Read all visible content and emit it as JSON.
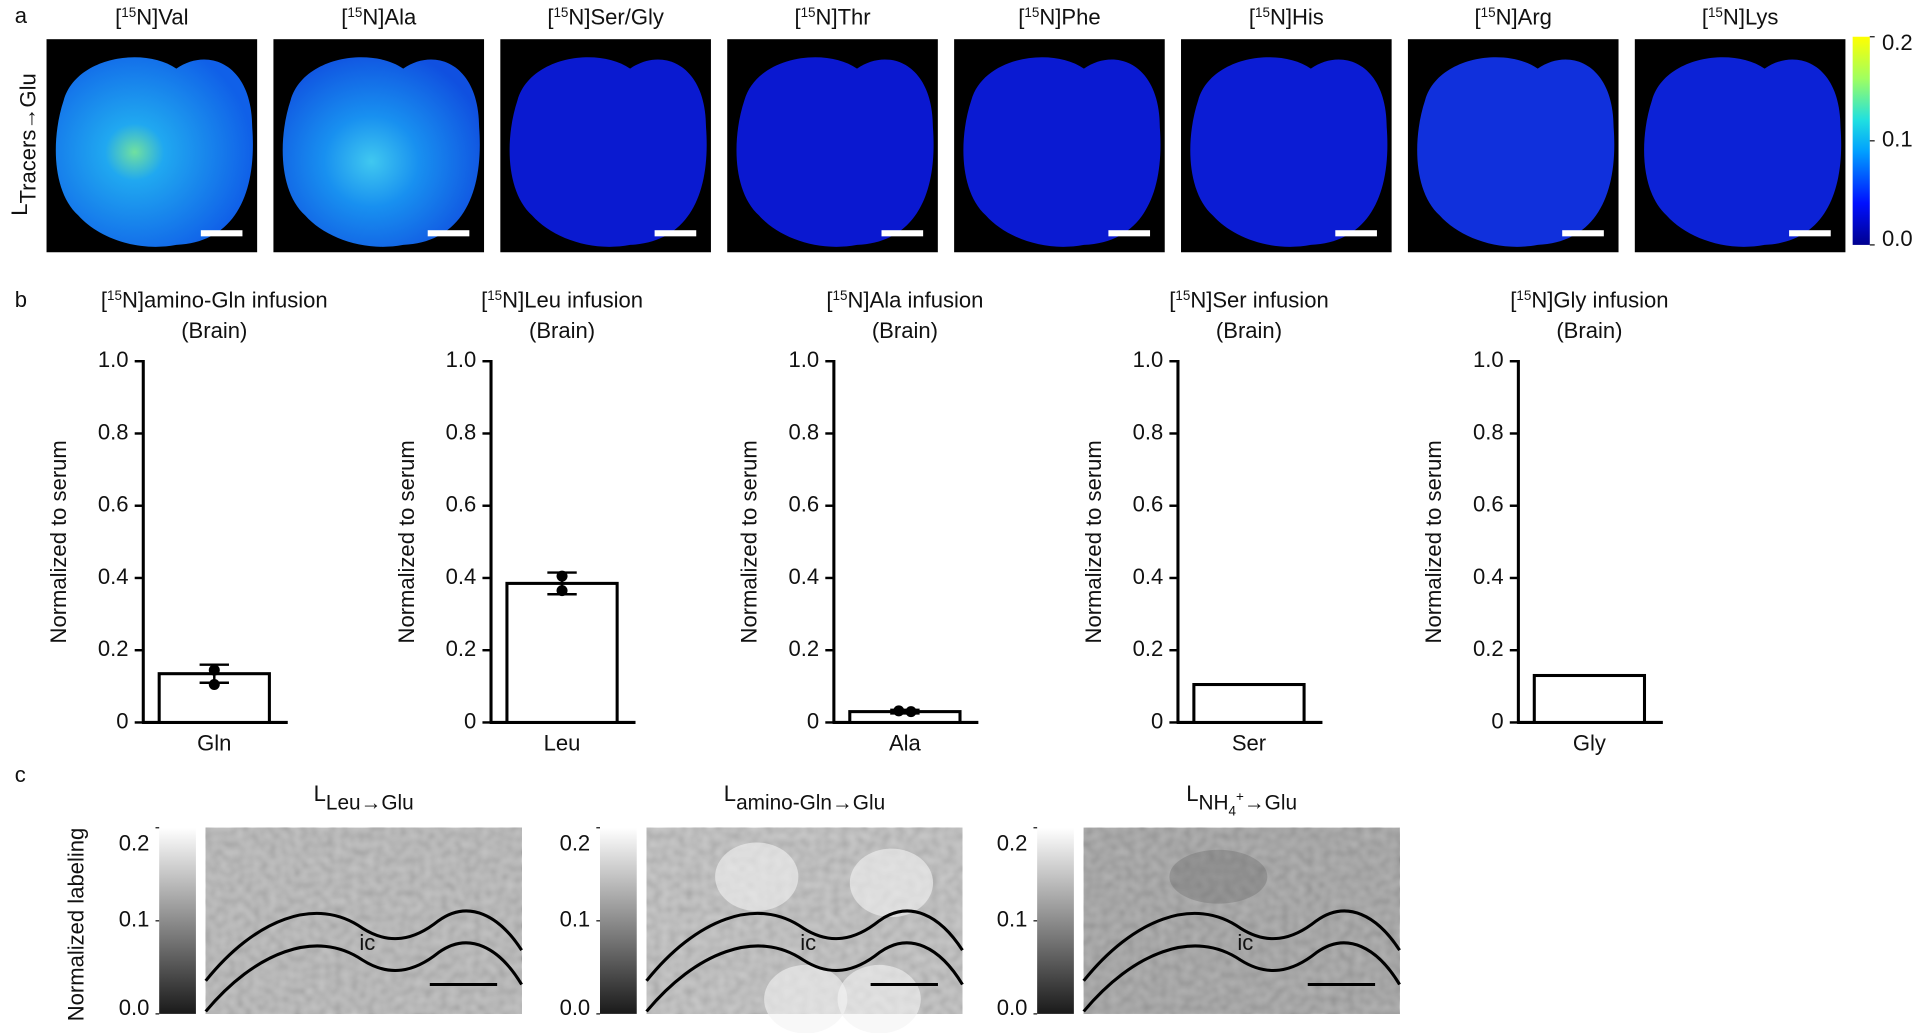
{
  "panel_labels": [
    "a",
    "b",
    "c"
  ],
  "panel_a": {
    "row_label": [
      "L",
      "Tracers→Glu"
    ],
    "images": [
      {
        "title": [
          "[",
          "15",
          "N]Val"
        ]
      },
      {
        "title": [
          "[",
          "15",
          "N]Ala"
        ]
      },
      {
        "title": [
          "[",
          "15",
          "N]Ser/Gly"
        ]
      },
      {
        "title": [
          "[",
          "15",
          "N]Thr"
        ]
      },
      {
        "title": [
          "[",
          "15",
          "N]Phe"
        ]
      },
      {
        "title": [
          "[",
          "15",
          "N]His"
        ]
      },
      {
        "title": [
          "[",
          "15",
          "N]Arg"
        ]
      },
      {
        "title": [
          "[",
          "15",
          "N]Lys"
        ]
      }
    ],
    "colorbar": {
      "lim": [
        0,
        0.2
      ],
      "ticks": [
        {
          "value": 0,
          "label": "0.0"
        },
        0.1,
        0.2
      ]
    }
  },
  "chart_data": [
    {
      "type": "bar",
      "title": [
        "[",
        "15",
        "N]amino-Gln infusion"
      ],
      "subtitle": "(Brain)",
      "ylabel": "Normalized to serum",
      "categories": [
        "Gln"
      ],
      "values": [
        0.135
      ],
      "errors": [
        0.025
      ],
      "points": [
        [
          0.145,
          0.105
        ]
      ],
      "color": "#ffffff",
      "ylim": [
        0,
        1
      ],
      "yticks": [
        0,
        0.2,
        0.4,
        0.6,
        0.8,
        {
          "value": 1,
          "label": "1.0"
        }
      ]
    },
    {
      "type": "bar",
      "title": [
        "[",
        "15",
        "N]Leu infusion"
      ],
      "subtitle": "(Brain)",
      "ylabel": "Normalized to serum",
      "categories": [
        "Leu"
      ],
      "values": [
        0.385
      ],
      "errors": [
        0.03
      ],
      "points": [
        [
          0.405,
          0.365
        ]
      ],
      "color": "#ffffff",
      "ylim": [
        0,
        1
      ],
      "yticks": [
        0,
        0.2,
        0.4,
        0.6,
        0.8,
        {
          "value": 1,
          "label": "1.0"
        }
      ]
    },
    {
      "type": "bar",
      "title": [
        "[",
        "15",
        "N]Ala infusion"
      ],
      "subtitle": "(Brain)",
      "ylabel": "Normalized to serum",
      "categories": [
        "Ala"
      ],
      "values": [
        0.03
      ],
      "errors": [
        0.005
      ],
      "points": [
        [
          0.032,
          0.03
        ]
      ],
      "color": "#ffffff",
      "ylim": [
        0,
        1
      ],
      "yticks": [
        0,
        0.2,
        0.4,
        0.6,
        0.8,
        {
          "value": 1,
          "label": "1.0"
        }
      ]
    },
    {
      "type": "bar",
      "title": [
        "[",
        "15",
        "N]Ser infusion"
      ],
      "subtitle": "(Brain)",
      "ylabel": "Normalized to serum",
      "categories": [
        "Ser"
      ],
      "values": [
        0.105
      ],
      "color": "#ffffff",
      "ylim": [
        0,
        1
      ],
      "yticks": [
        0,
        0.2,
        0.4,
        0.6,
        0.8,
        {
          "value": 1,
          "label": "1.0"
        }
      ]
    },
    {
      "type": "bar",
      "title": [
        "[",
        "15",
        "N]Gly infusion"
      ],
      "subtitle": "(Brain)",
      "ylabel": "Normalized to serum",
      "categories": [
        "Gly"
      ],
      "values": [
        0.13
      ],
      "color": "#ffffff",
      "ylim": [
        0,
        1
      ],
      "yticks": [
        0,
        0.2,
        0.4,
        0.6,
        0.8,
        {
          "value": 1,
          "label": "1.0"
        }
      ]
    }
  ],
  "panel_c": {
    "ylabel": "Normalized labeling",
    "colorbar": {
      "lim": [
        0,
        0.2
      ],
      "ticks": [
        {
          "value": 0,
          "label": "0.0"
        },
        0.1,
        0.2
      ]
    },
    "images": [
      {
        "title": [
          "L",
          "Leu→Glu"
        ],
        "region": "ic"
      },
      {
        "title": [
          "L",
          "amino-Gln→Glu"
        ],
        "region": "ic"
      },
      {
        "title": [
          "L",
          "NH",
          "4",
          "+",
          "→Glu"
        ],
        "region": "ic"
      }
    ]
  }
}
